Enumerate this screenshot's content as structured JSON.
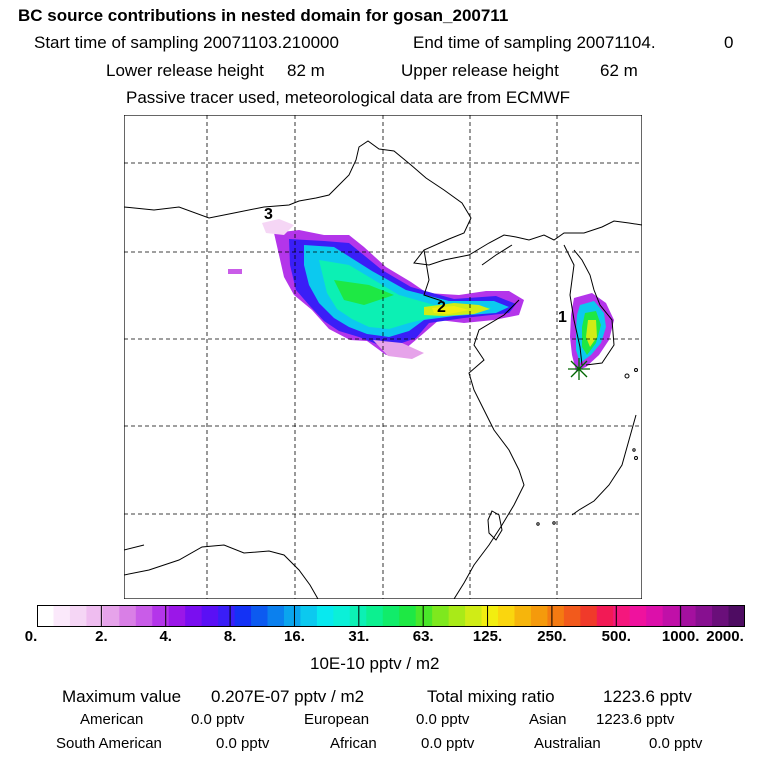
{
  "header": {
    "title": "BC  source contributions in nested domain for gosan_200711",
    "start_label": "Start time of sampling 20071103.210000",
    "end_label": "End time of sampling 20071104.",
    "end_value": "0",
    "lower_label": "Lower release height",
    "lower_value": "82 m",
    "upper_label": "Upper release height",
    "upper_value": "62 m",
    "tracer_note": "Passive tracer used, meteorological data are from ECMWF"
  },
  "map": {
    "region_labels": [
      "1",
      "2",
      "3"
    ],
    "receptor_marker": "asterisk-icon"
  },
  "colorbar": {
    "ticks": [
      "0.",
      "2.",
      "4.",
      "8.",
      "16.",
      "31.",
      "63.",
      "125.",
      "250.",
      "500.",
      "1000.",
      "2000."
    ],
    "colors": [
      "#ffffff",
      "#fbe9fb",
      "#f5d6f5",
      "#efbdf0",
      "#e6a3ea",
      "#d97fe6",
      "#c95ce8",
      "#b435ea",
      "#9b17e8",
      "#7a0ef0",
      "#5a10f5",
      "#3a1ef7",
      "#1432f5",
      "#0c5af0",
      "#0b80ee",
      "#0aa5ee",
      "#0cc9ef",
      "#08e9ef",
      "#0bf0d8",
      "#0cf0b4",
      "#0cf090",
      "#11ec6a",
      "#1ee844",
      "#4ae72a",
      "#7ee81e",
      "#a9ea18",
      "#d0ec16",
      "#f2ee10",
      "#fad60e",
      "#f6b50c",
      "#f59a0c",
      "#f47a12",
      "#f25a1c",
      "#f03a2a",
      "#f21a55",
      "#f5177d",
      "#ef129e",
      "#dc10aa",
      "#c010a8",
      "#a4109f",
      "#871090",
      "#6a0f7a",
      "#4e0c62"
    ],
    "unit_label": "10E-10 pptv / m2"
  },
  "summary": {
    "max_label": "Maximum value",
    "max_value": "0.207E-07 pptv / m2",
    "total_label": "Total mixing ratio",
    "total_value": "1223.6 pptv",
    "american_label": "American",
    "american_value": "0.0 pptv",
    "european_label": "European",
    "european_value": "0.0 pptv",
    "asian_label": "Asian",
    "asian_value": "1223.6 pptv",
    "south_american_label": "South American",
    "south_american_value": "0.0 pptv",
    "african_label": "African",
    "african_value": "0.0 pptv",
    "australian_label": "Australian",
    "australian_value": "0.0 pptv"
  }
}
